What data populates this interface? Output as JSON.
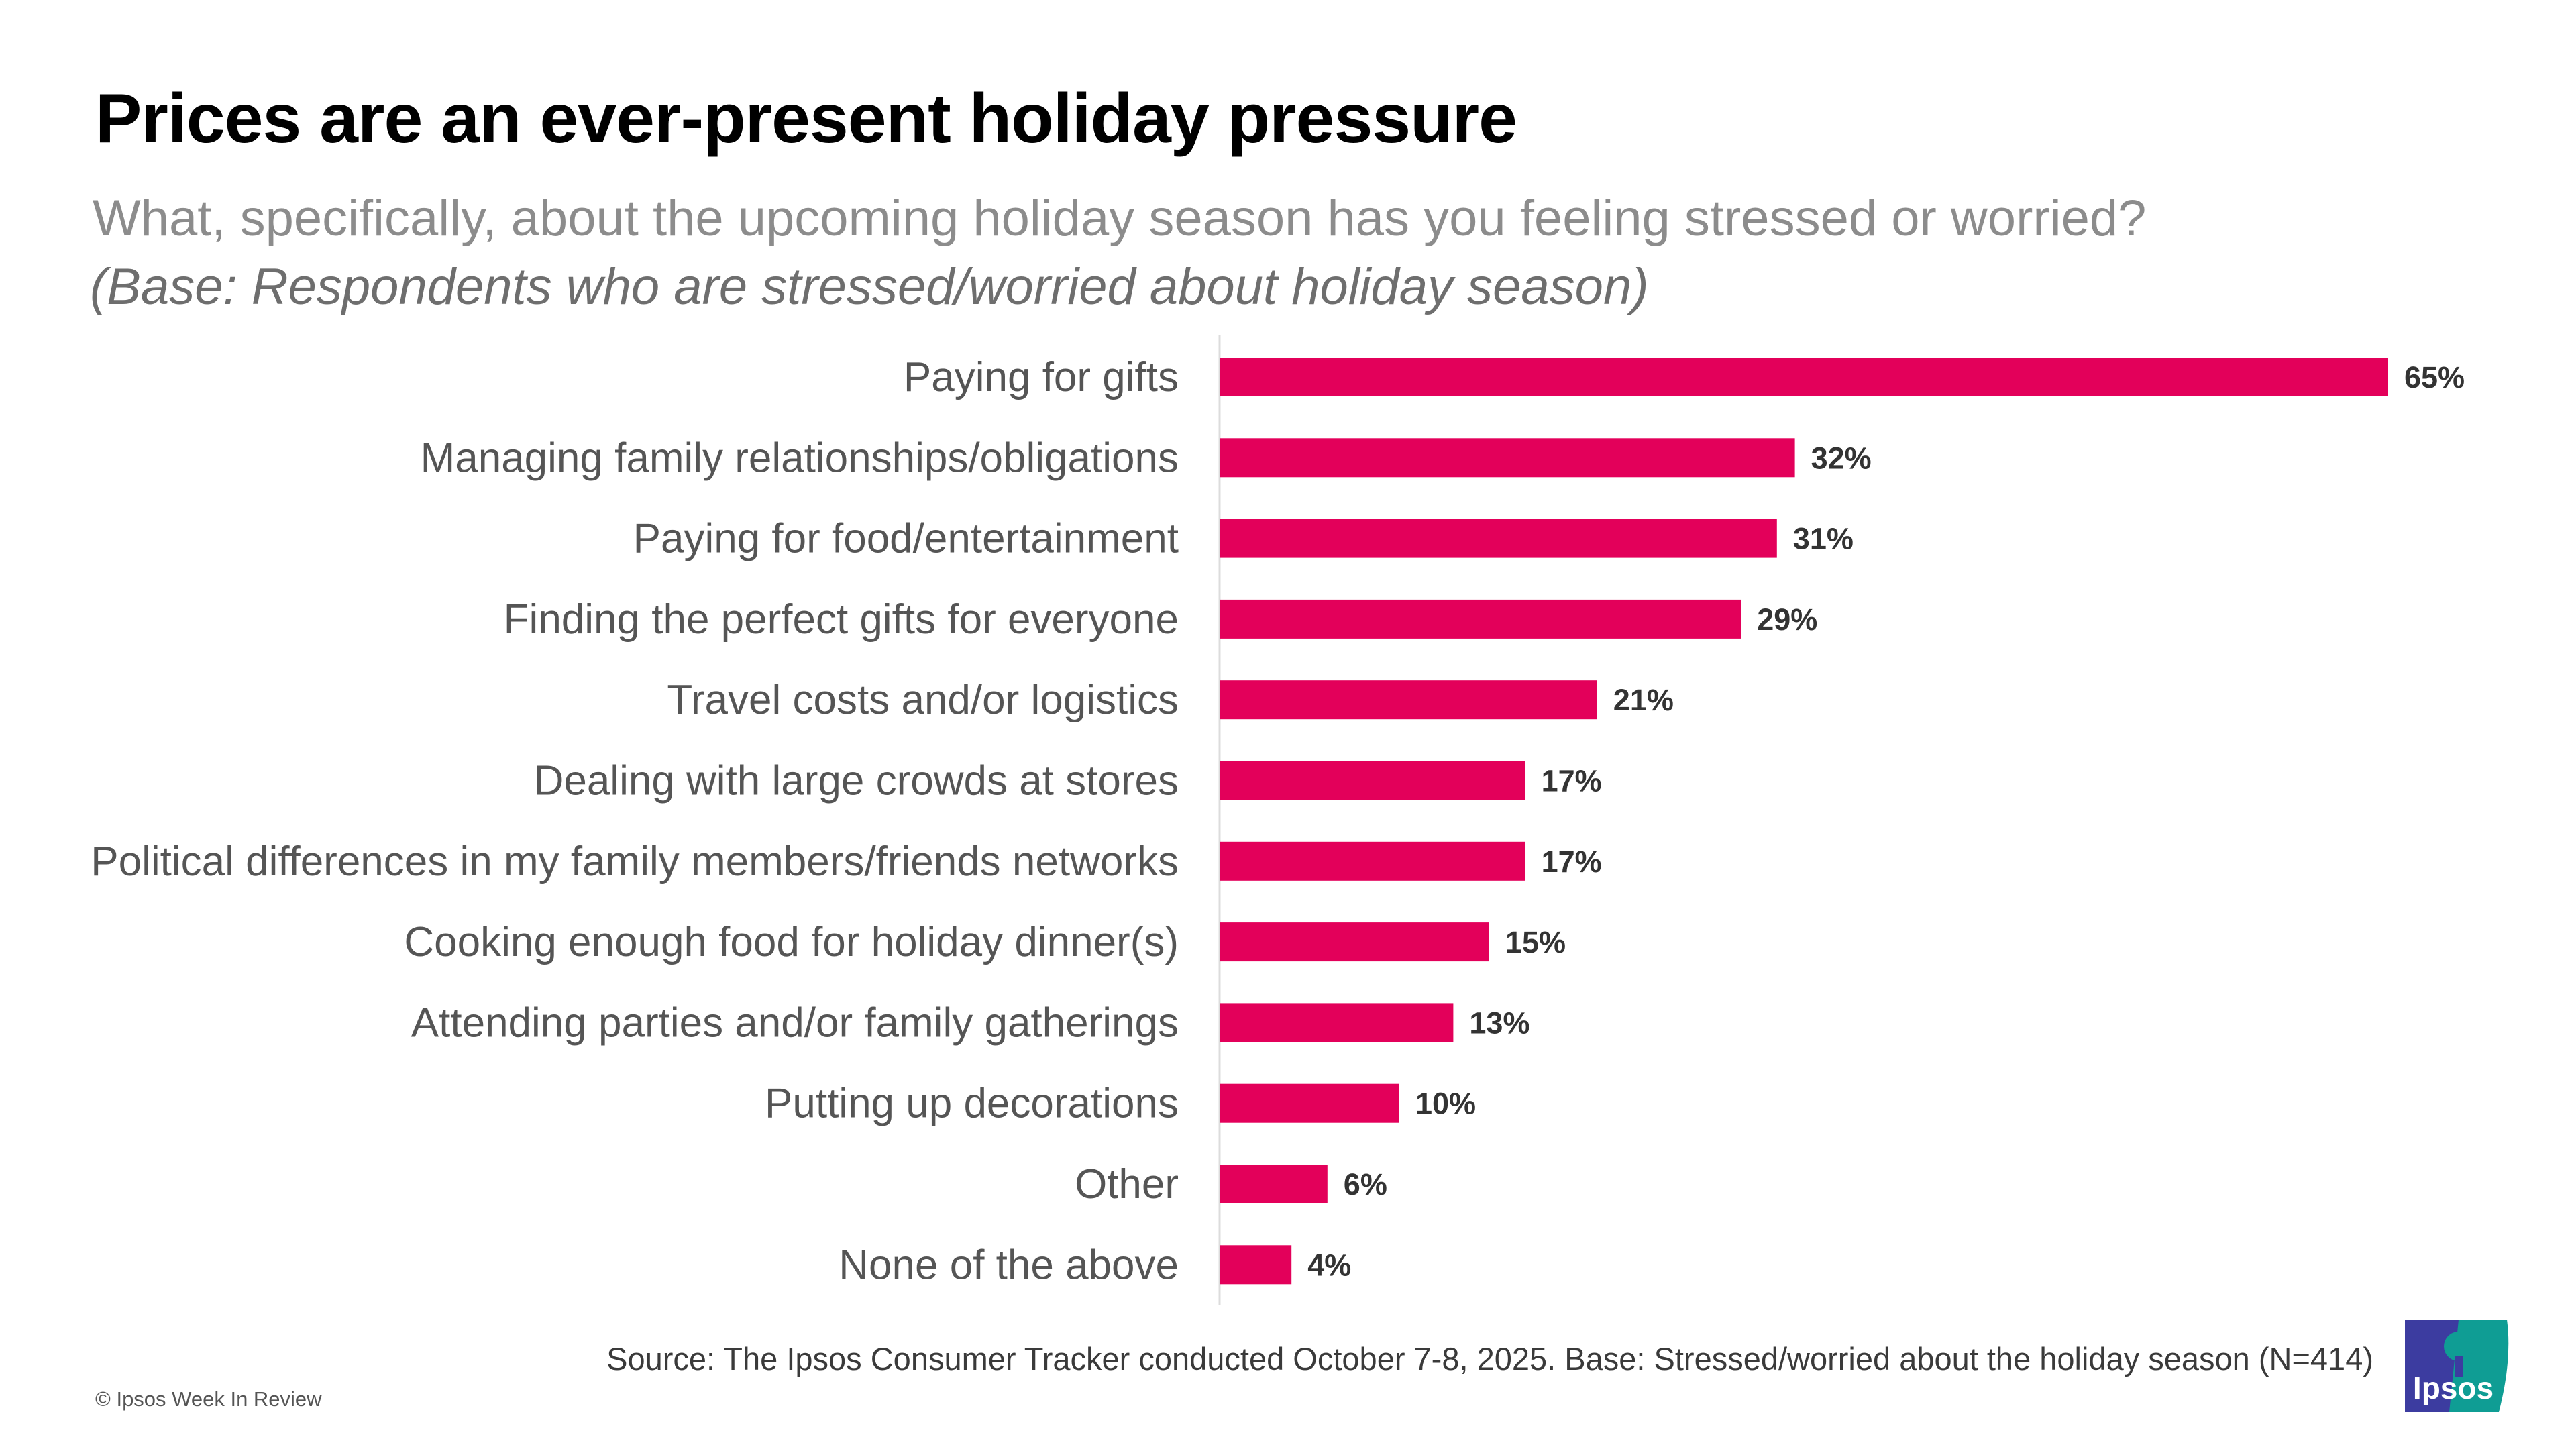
{
  "header": {
    "title": "Prices are an ever-present holiday pressure",
    "subtitle": "What, specifically, about the upcoming holiday season has you feeling stressed or worried?",
    "base": "(Base: Respondents who are stressed/worried about holiday season)"
  },
  "chart_data": {
    "type": "bar",
    "orientation": "horizontal",
    "categories": [
      "Paying for gifts",
      "Managing family relationships/obligations",
      "Paying for food/entertainment",
      "Finding the perfect gifts for everyone",
      "Travel costs and/or logistics",
      "Dealing with large crowds at stores",
      "Political differences in my family members/friends networks",
      "Cooking enough food for holiday dinner(s)",
      "Attending parties and/or family gatherings",
      "Putting up decorations",
      "Other",
      "None of the above"
    ],
    "values": [
      65,
      32,
      31,
      29,
      21,
      17,
      17,
      15,
      13,
      10,
      6,
      4
    ],
    "data_labels": [
      "65%",
      "32%",
      "31%",
      "29%",
      "21%",
      "17%",
      "17%",
      "15%",
      "13%",
      "10%",
      "6%",
      "4%"
    ],
    "unit": "%",
    "xlim": [
      0,
      65
    ],
    "grid": false,
    "bar_color": "#e3005a"
  },
  "footer": {
    "source": "Source: The Ipsos Consumer Tracker conducted  October 7-8, 2025. Base: Stressed/worried about the holiday season (N=414)",
    "copyright": "© Ipsos Week In Review",
    "logo_text": "Ipsos",
    "logo_colors": {
      "left": "#3c3ca0",
      "right": "#0f9d94"
    }
  }
}
